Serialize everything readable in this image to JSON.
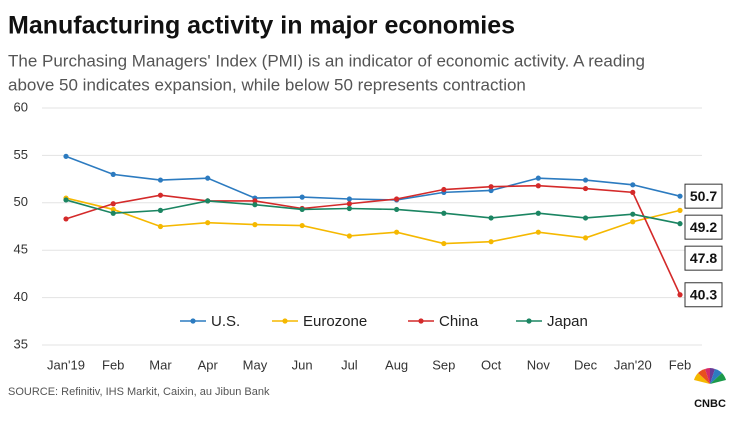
{
  "chart_data": {
    "type": "line",
    "title": "Manufacturing activity in major economies",
    "subtitle": [
      "The Purchasing Managers' Index (PMI) is an indicator of economic activity. A reading",
      "above 50 indicates expansion, while below 50 represents contraction"
    ],
    "categories": [
      "Jan'19",
      "Feb",
      "Mar",
      "Apr",
      "May",
      "Jun",
      "Jul",
      "Aug",
      "Sep",
      "Oct",
      "Nov",
      "Dec",
      "Jan'20",
      "Feb"
    ],
    "series": [
      {
        "name": "U.S.",
        "color": "#2c7bc0",
        "values": [
          54.9,
          53.0,
          52.4,
          52.6,
          50.5,
          50.6,
          50.4,
          50.3,
          51.1,
          51.3,
          52.6,
          52.4,
          51.9,
          50.7
        ]
      },
      {
        "name": "Eurozone",
        "color": "#f5b800",
        "values": [
          50.5,
          49.3,
          47.5,
          47.9,
          47.7,
          47.6,
          46.5,
          46.9,
          45.7,
          45.9,
          46.9,
          46.3,
          48.0,
          49.2
        ]
      },
      {
        "name": "China",
        "color": "#d42a2a",
        "values": [
          48.3,
          49.9,
          50.8,
          50.2,
          50.2,
          49.4,
          49.9,
          50.4,
          51.4,
          51.7,
          51.8,
          51.5,
          51.1,
          40.3
        ]
      },
      {
        "name": "Japan",
        "color": "#1b8562",
        "values": [
          50.3,
          48.9,
          49.2,
          50.2,
          49.8,
          49.3,
          49.4,
          49.3,
          48.9,
          48.4,
          48.9,
          48.4,
          48.8,
          47.8
        ]
      }
    ],
    "ylim": [
      35,
      60
    ],
    "yticks": [
      35,
      40,
      45,
      50,
      55,
      60
    ],
    "grid": true,
    "source": "SOURCE: Refinitiv, IHS Markit, Caixin, au Jibun Bank",
    "logo": "CNBC"
  }
}
